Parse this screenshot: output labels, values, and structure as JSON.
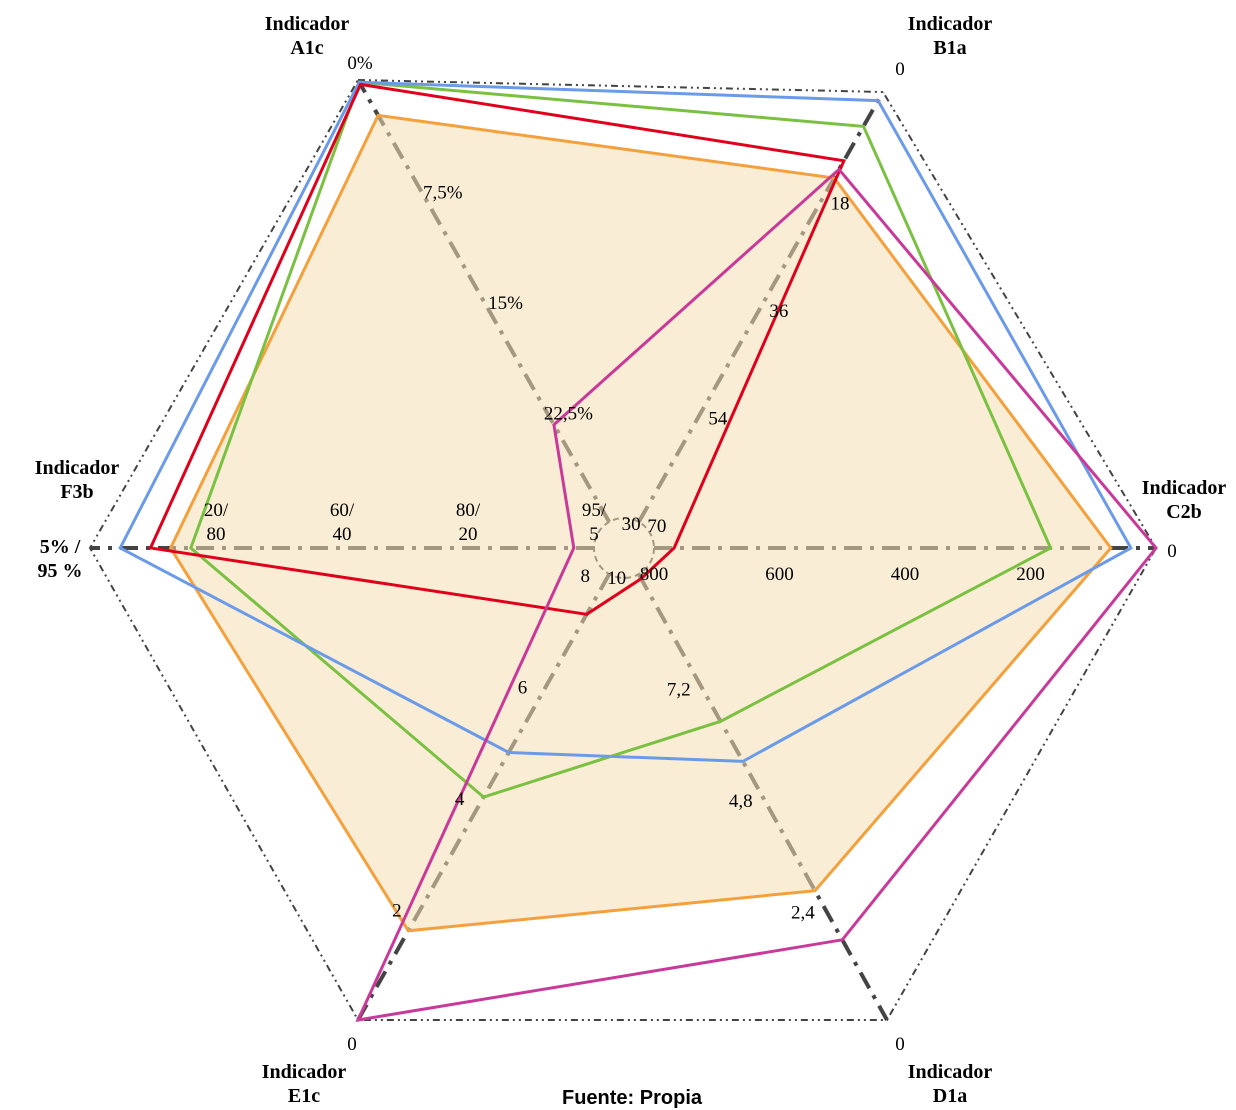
{
  "chart_data": {
    "type": "radar",
    "title": "",
    "source": "Fuente: Propia",
    "legend": "none",
    "fill_color": "#f5deb3",
    "axes": [
      {
        "id": "A1c",
        "title": [
          "Indicador",
          "A1c"
        ],
        "ticks": [
          "0%",
          "7,5%",
          "15%",
          "22,5%",
          "30"
        ],
        "range_labels": [
          "0%",
          "30"
        ]
      },
      {
        "id": "B1a",
        "title": [
          "Indicador",
          "B1a"
        ],
        "ticks": [
          "0",
          "18",
          "36",
          "54",
          "70"
        ],
        "range_labels": [
          "0",
          "70"
        ]
      },
      {
        "id": "C2b",
        "title": [
          "Indicador",
          "C2b"
        ],
        "ticks": [
          "0",
          "200",
          "400",
          "600",
          "800"
        ],
        "range_labels": [
          "0",
          "800"
        ]
      },
      {
        "id": "D1a",
        "title": [
          "Indicador",
          "D1a"
        ],
        "ticks": [
          "0",
          "2,4",
          "4,8",
          "7,2",
          "10"
        ],
        "range_labels": [
          "0",
          "10"
        ]
      },
      {
        "id": "E1c",
        "title": [
          "Indicador",
          "E1c"
        ],
        "ticks": [
          "0",
          "2",
          "4",
          "6",
          "8"
        ],
        "range_labels": [
          "0",
          "8"
        ]
      },
      {
        "id": "F3b",
        "title": [
          "Indicador",
          "F3b"
        ],
        "ticks": [
          [
            "5% /",
            "95 %"
          ],
          [
            "20/",
            "80"
          ],
          [
            "60/",
            "40"
          ],
          [
            "80/",
            "20"
          ],
          [
            "95/",
            "5"
          ]
        ],
        "range_labels": [
          "5% / 95 %",
          "95/5"
        ]
      }
    ],
    "series": [
      {
        "color": "#f4a03c",
        "fill": true,
        "values": [
          0.08,
          0.2,
          0.09,
          0.29,
          0.2,
          0.16
        ]
      },
      {
        "color": "#7ac142",
        "fill": false,
        "values": [
          0.005,
          0.08,
          0.21,
          0.67,
          0.5,
          0.2
        ]
      },
      {
        "color": "#6b9be8",
        "fill": false,
        "values": [
          0.005,
          0.02,
          0.05,
          0.58,
          0.6,
          0.06
        ]
      },
      {
        "color": "#e0001b",
        "fill": false,
        "values": [
          0.01,
          0.16,
          0.96,
          0.99,
          0.91,
          0.12
        ]
      },
      {
        "color": "#c9399a",
        "fill": false,
        "values": [
          0.78,
          0.18,
          0.0,
          0.18,
          0.0,
          0.96
        ]
      }
    ]
  }
}
